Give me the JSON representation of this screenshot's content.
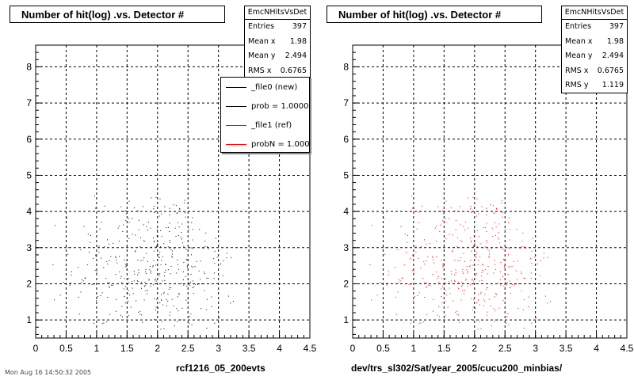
{
  "chart_data": [
    {
      "type": "scatter",
      "title": "Number of hit(log) .vs. Detector #",
      "xlim": [
        0,
        4.5
      ],
      "ylim": [
        0.5,
        8.6
      ],
      "x_ticks": [
        "0",
        "0.5",
        "1",
        "1.5",
        "2",
        "2.5",
        "3",
        "3.5",
        "4",
        "4.5"
      ],
      "y_ticks": [
        "1",
        "2",
        "3",
        "4",
        "5",
        "6",
        "7",
        "8"
      ],
      "grid": true,
      "xlabel_below": "rcf1216_05_200evts",
      "stats": {
        "title": "EmcNHitsVsDet",
        "rows": [
          {
            "label": "Entries",
            "value": "397"
          },
          {
            "label": "Mean x",
            "value": "1.98"
          },
          {
            "label": "Mean y",
            "value": "2.494"
          },
          {
            "label": "RMS x",
            "value": "0.6765"
          }
        ]
      },
      "legend": {
        "placement": "top-right",
        "entries": [
          {
            "label": "_file0 (new)",
            "color": "#000000"
          },
          {
            "label": "prob = 1.000000",
            "color": "#000000"
          },
          {
            "label": "_file1 (ref)",
            "color": "#ff0000"
          },
          {
            "label": "probN = 1.000000",
            "color": "#ff0000"
          }
        ]
      },
      "series": [
        {
          "color": "#000000",
          "distribution": {
            "entries": 397,
            "mean_x": 1.98,
            "mean_y": 2.494,
            "rms_x": 0.6765,
            "rms_y": 1.119
          }
        }
      ]
    },
    {
      "type": "scatter",
      "title": "Number of hit(log) .vs. Detector #",
      "xlim": [
        0,
        4.5
      ],
      "ylim": [
        0.5,
        8.6
      ],
      "x_ticks": [
        "0",
        "0.5",
        "1",
        "1.5",
        "2",
        "2.5",
        "3",
        "3.5",
        "4",
        "4.5"
      ],
      "y_ticks": [
        "1",
        "2",
        "3",
        "4",
        "5",
        "6",
        "7",
        "8"
      ],
      "grid": true,
      "xlabel_below": "dev/trs_sl302/Sat/year_2005/cucu200_minbias/",
      "stats": {
        "title": "EmcNHitsVsDet",
        "rows": [
          {
            "label": "Entries",
            "value": "397"
          },
          {
            "label": "Mean x",
            "value": "1.98"
          },
          {
            "label": "Mean y",
            "value": "2.494"
          },
          {
            "label": "RMS x",
            "value": "0.6765"
          },
          {
            "label": "RMS y",
            "value": "1.119"
          }
        ]
      },
      "series": [
        {
          "color": "#ff0000",
          "distribution": {
            "entries": 397,
            "mean_x": 1.98,
            "mean_y": 2.494,
            "rms_x": 0.6765,
            "rms_y": 1.119
          }
        }
      ]
    }
  ],
  "footer": {
    "text": "Mon Aug 16 14:50:32 2005"
  }
}
